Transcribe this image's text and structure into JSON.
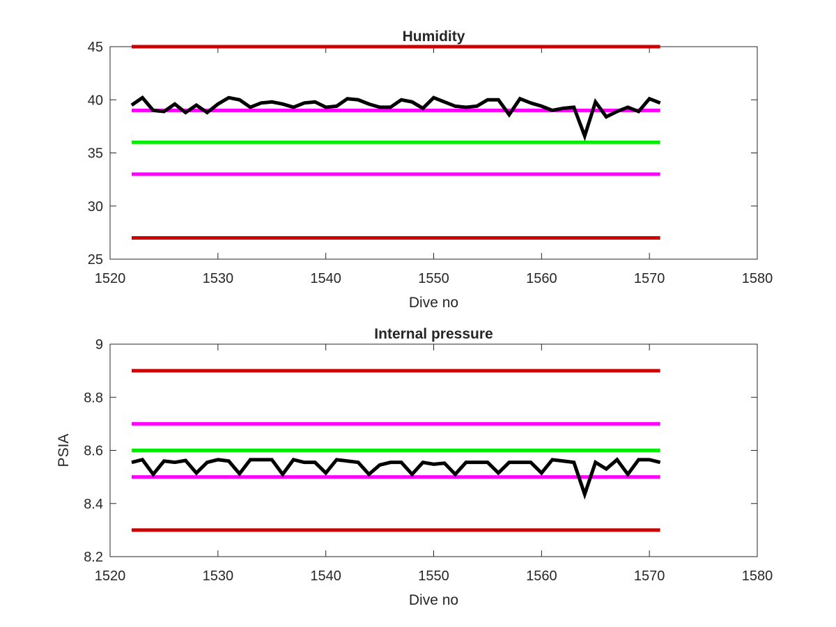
{
  "figure": {
    "background": "#ffffff"
  },
  "chart_data": [
    {
      "type": "line",
      "title": "Humidity",
      "xlabel": "Dive no",
      "ylabel": "",
      "xlim": [
        1520,
        1580
      ],
      "ylim": [
        25,
        45
      ],
      "xticks": [
        "1520",
        "1530",
        "1540",
        "1550",
        "1560",
        "1570",
        "1580"
      ],
      "yticks": [
        "25",
        "30",
        "35",
        "40",
        "45"
      ],
      "grid": false,
      "legend": "none",
      "reference_lines": [
        {
          "y": 45,
          "x": [
            1522,
            1571
          ],
          "color": "#cc0000"
        },
        {
          "y": 39,
          "x": [
            1522,
            1571
          ],
          "color": "#ff00ff"
        },
        {
          "y": 36,
          "x": [
            1522,
            1571
          ],
          "color": "#00ee00"
        },
        {
          "y": 33,
          "x": [
            1522,
            1571
          ],
          "color": "#ff00ff"
        },
        {
          "y": 27,
          "x": [
            1522,
            1571
          ],
          "color": "#cc0000"
        }
      ],
      "series": [
        {
          "color": "#000000",
          "x": [
            1522,
            1523,
            1524,
            1525,
            1526,
            1527,
            1528,
            1529,
            1530,
            1531,
            1532,
            1533,
            1534,
            1535,
            1536,
            1537,
            1538,
            1539,
            1540,
            1541,
            1542,
            1543,
            1544,
            1545,
            1546,
            1547,
            1548,
            1549,
            1550,
            1551,
            1552,
            1553,
            1554,
            1555,
            1556,
            1557,
            1558,
            1559,
            1560,
            1561,
            1562,
            1563,
            1564,
            1565,
            1566,
            1567,
            1568,
            1569,
            1570,
            1571
          ],
          "values": [
            39.5,
            40.2,
            39.0,
            38.9,
            39.6,
            38.8,
            39.5,
            38.8,
            39.6,
            40.2,
            40.0,
            39.3,
            39.7,
            39.8,
            39.6,
            39.3,
            39.7,
            39.8,
            39.3,
            39.4,
            40.1,
            40.0,
            39.6,
            39.3,
            39.3,
            40.0,
            39.8,
            39.2,
            40.2,
            39.8,
            39.4,
            39.3,
            39.4,
            40.0,
            40.0,
            38.6,
            40.1,
            39.7,
            39.4,
            39.0,
            39.2,
            39.3,
            36.6,
            39.8,
            38.4,
            38.9,
            39.3,
            38.9,
            40.1,
            39.7
          ]
        }
      ]
    },
    {
      "type": "line",
      "title": "Internal pressure",
      "xlabel": "Dive no",
      "ylabel": "PSIA",
      "xlim": [
        1520,
        1580
      ],
      "ylim": [
        8.2,
        9
      ],
      "xticks": [
        "1520",
        "1530",
        "1540",
        "1550",
        "1560",
        "1570",
        "1580"
      ],
      "yticks": [
        "8.2",
        "8.4",
        "8.6",
        "8.8",
        "9"
      ],
      "grid": false,
      "legend": "none",
      "reference_lines": [
        {
          "y": 8.9,
          "x": [
            1522,
            1571
          ],
          "color": "#cc0000"
        },
        {
          "y": 8.7,
          "x": [
            1522,
            1571
          ],
          "color": "#ff00ff"
        },
        {
          "y": 8.6,
          "x": [
            1522,
            1571
          ],
          "color": "#00ee00"
        },
        {
          "y": 8.5,
          "x": [
            1522,
            1571
          ],
          "color": "#ff00ff"
        },
        {
          "y": 8.3,
          "x": [
            1522,
            1571
          ],
          "color": "#cc0000"
        }
      ],
      "series": [
        {
          "color": "#000000",
          "x": [
            1522,
            1523,
            1524,
            1525,
            1526,
            1527,
            1528,
            1529,
            1530,
            1531,
            1532,
            1533,
            1534,
            1535,
            1536,
            1537,
            1538,
            1539,
            1540,
            1541,
            1542,
            1543,
            1544,
            1545,
            1546,
            1547,
            1548,
            1549,
            1550,
            1551,
            1552,
            1553,
            1554,
            1555,
            1556,
            1557,
            1558,
            1559,
            1560,
            1561,
            1562,
            1563,
            1564,
            1565,
            1566,
            1567,
            1568,
            1569,
            1570,
            1571
          ],
          "values": [
            8.555,
            8.565,
            8.51,
            8.56,
            8.555,
            8.562,
            8.515,
            8.555,
            8.565,
            8.56,
            8.512,
            8.565,
            8.565,
            8.565,
            8.51,
            8.565,
            8.555,
            8.555,
            8.515,
            8.565,
            8.56,
            8.555,
            8.51,
            8.545,
            8.555,
            8.555,
            8.51,
            8.555,
            8.548,
            8.552,
            8.51,
            8.555,
            8.555,
            8.555,
            8.515,
            8.555,
            8.555,
            8.555,
            8.515,
            8.565,
            8.56,
            8.555,
            8.435,
            8.555,
            8.53,
            8.565,
            8.51,
            8.565,
            8.565,
            8.555
          ]
        }
      ]
    }
  ]
}
